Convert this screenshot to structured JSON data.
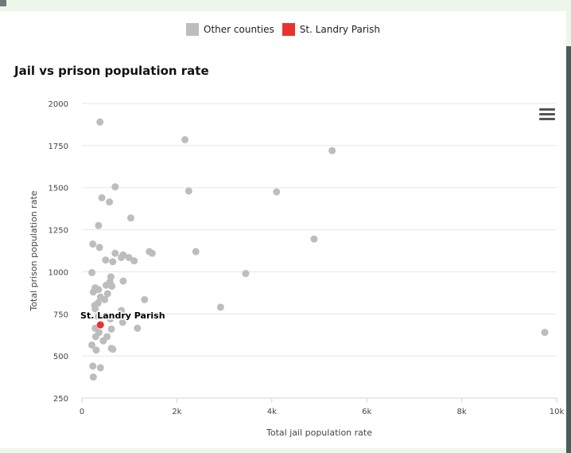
{
  "legend": {
    "items": [
      {
        "label": "Other counties",
        "color": "#bdbdbd"
      },
      {
        "label": "St. Landry Parish",
        "color": "#e8322f"
      }
    ]
  },
  "menu_icon": "hamburger-menu-icon",
  "chart_data": {
    "type": "scatter",
    "title": "Jail vs prison population rate",
    "xlabel": "Total jail population rate",
    "ylabel": "Total prison population rate",
    "xlim": [
      0,
      10000
    ],
    "ylim": [
      250,
      2000
    ],
    "x_ticks": [
      0,
      2000,
      4000,
      6000,
      8000,
      10000
    ],
    "x_tick_labels": [
      "0",
      "2k",
      "4k",
      "6k",
      "8k",
      "10k"
    ],
    "y_ticks": [
      250,
      500,
      750,
      1000,
      1250,
      1500,
      1750,
      2000
    ],
    "y_tick_labels": [
      "250",
      "500",
      "750",
      "1000",
      "1250",
      "1500",
      "1750",
      "2000"
    ],
    "grid": true,
    "legend_position": "top-center",
    "series": [
      {
        "name": "Other counties",
        "color": "#bdbdbd",
        "points": [
          [
            380,
            1890
          ],
          [
            2170,
            1785
          ],
          [
            5270,
            1720
          ],
          [
            700,
            1505
          ],
          [
            2250,
            1480
          ],
          [
            4100,
            1475
          ],
          [
            420,
            1440
          ],
          [
            580,
            1415
          ],
          [
            1030,
            1320
          ],
          [
            350,
            1275
          ],
          [
            4890,
            1195
          ],
          [
            230,
            1165
          ],
          [
            370,
            1145
          ],
          [
            1420,
            1120
          ],
          [
            1480,
            1110
          ],
          [
            2400,
            1120
          ],
          [
            700,
            1110
          ],
          [
            870,
            1100
          ],
          [
            830,
            1085
          ],
          [
            990,
            1085
          ],
          [
            1100,
            1065
          ],
          [
            500,
            1070
          ],
          [
            650,
            1060
          ],
          [
            210,
            995
          ],
          [
            3450,
            990
          ],
          [
            610,
            970
          ],
          [
            870,
            945
          ],
          [
            590,
            940
          ],
          [
            510,
            920
          ],
          [
            630,
            915
          ],
          [
            280,
            905
          ],
          [
            350,
            895
          ],
          [
            240,
            880
          ],
          [
            540,
            870
          ],
          [
            390,
            850
          ],
          [
            480,
            835
          ],
          [
            1320,
            835
          ],
          [
            340,
            815
          ],
          [
            270,
            800
          ],
          [
            2920,
            790
          ],
          [
            280,
            780
          ],
          [
            830,
            770
          ],
          [
            900,
            740
          ],
          [
            340,
            735
          ],
          [
            600,
            720
          ],
          [
            860,
            700
          ],
          [
            1170,
            665
          ],
          [
            280,
            665
          ],
          [
            620,
            660
          ],
          [
            360,
            640
          ],
          [
            530,
            615
          ],
          [
            290,
            615
          ],
          [
            450,
            590
          ],
          [
            210,
            565
          ],
          [
            620,
            545
          ],
          [
            300,
            535
          ],
          [
            650,
            540
          ],
          [
            230,
            440
          ],
          [
            390,
            430
          ],
          [
            240,
            375
          ],
          [
            9750,
            640
          ]
        ]
      },
      {
        "name": "St. Landry Parish",
        "color": "#e8322f",
        "points": [
          [
            390,
            685
          ]
        ],
        "label": "St. Landry Parish"
      }
    ]
  }
}
